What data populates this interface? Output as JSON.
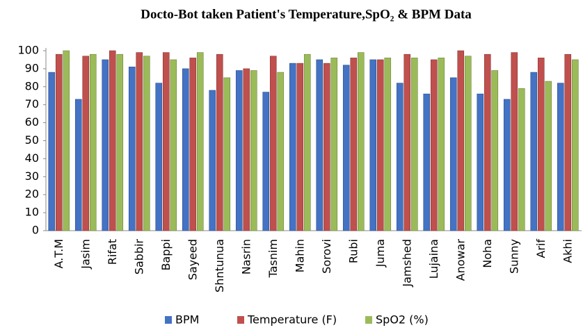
{
  "chart_data": {
    "type": "bar",
    "title": "Docto-Bot taken Patient's Temperature,SpO₂ & BPM Data",
    "categories": [
      "A.T.M",
      "Jasim",
      "Rifat",
      "Sabbir",
      "Bappi",
      "Sayeed",
      "Shntunua",
      "Nasrin",
      "Tasnim",
      "Mahin",
      "Sorovi",
      "Rubi",
      "Juma",
      "Jamshed",
      "Lujaina",
      "Anowar",
      "Noha",
      "Sunny",
      "Arif",
      "Akhi"
    ],
    "series": [
      {
        "name": "BPM",
        "color": "#4472c4",
        "values": [
          88,
          73,
          95,
          91,
          82,
          90,
          78,
          89,
          77,
          93,
          95,
          92,
          95,
          82,
          76,
          85,
          76,
          73,
          88,
          82
        ]
      },
      {
        "name": "Temperature (F)",
        "color": "#c0504d",
        "values": [
          98,
          97,
          100,
          99,
          99,
          96,
          98,
          90,
          97,
          93,
          93,
          96,
          95,
          98,
          95,
          100,
          98,
          99,
          96,
          98
        ]
      },
      {
        "name": "SpO2 (%)",
        "color": "#9bbb59",
        "values": [
          100,
          98,
          98,
          97,
          95,
          99,
          85,
          89,
          88,
          98,
          96,
          99,
          96,
          96,
          96,
          97,
          89,
          79,
          83,
          95
        ]
      }
    ],
    "ylim": [
      0,
      100
    ],
    "yticks": [
      0,
      10,
      20,
      30,
      40,
      50,
      60,
      70,
      80,
      90,
      100
    ],
    "grid": false,
    "legend": "bottom"
  }
}
